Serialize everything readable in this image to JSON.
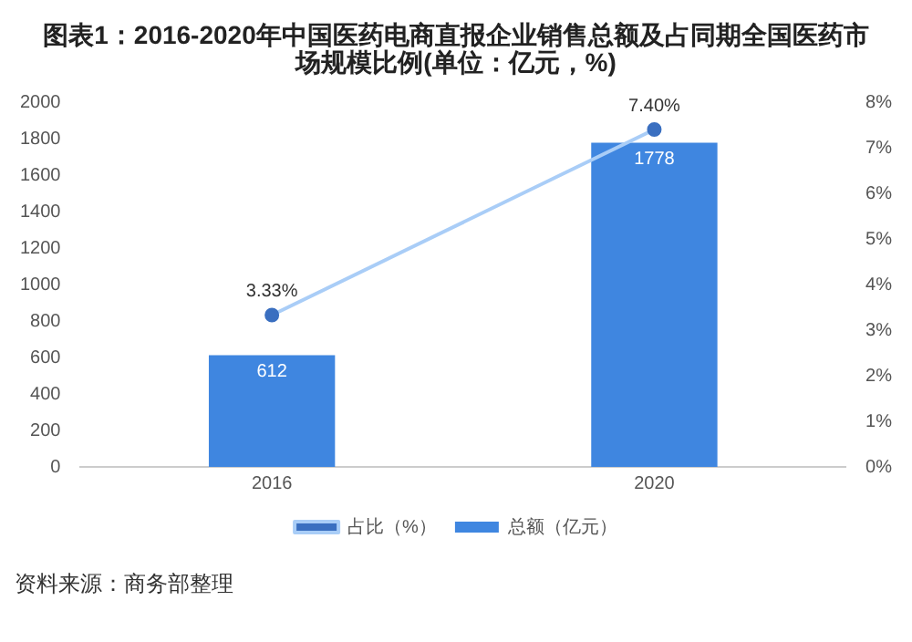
{
  "chart_data": {
    "type": "bar",
    "title": "图表1：2016-2020年中国医药电商直报企业销售总额及占同期全国医药市场规模比例(单位：亿元，%)",
    "categories": [
      "2016",
      "2020"
    ],
    "series": [
      {
        "name": "总额（亿元）",
        "color": "#3f86e0",
        "values": [
          612,
          1778
        ],
        "value_labels": [
          "612",
          "1778"
        ]
      },
      {
        "name": "占比（%）",
        "type": "line",
        "axis": "y2",
        "color": "#a9cdf7",
        "values": [
          3.33,
          7.4
        ],
        "value_labels": [
          "3.33%",
          "7.40%"
        ]
      }
    ],
    "ylim": [
      0,
      2000
    ],
    "yticks": [
      0,
      200,
      400,
      600,
      800,
      1000,
      1200,
      1400,
      1600,
      1800,
      2000
    ],
    "y2lim": [
      0,
      8
    ],
    "y2ticks": [
      {
        "value": 0,
        "label": "0%"
      },
      {
        "value": 1,
        "label": "1%"
      },
      {
        "value": 2,
        "label": "2%"
      },
      {
        "value": 3,
        "label": "3%"
      },
      {
        "value": 4,
        "label": "4%"
      },
      {
        "value": 5,
        "label": "5%"
      },
      {
        "value": 6,
        "label": "6%"
      },
      {
        "value": 7,
        "label": "7%"
      },
      {
        "value": 8,
        "label": "8%"
      }
    ],
    "legend": "bottom",
    "marker": "circle",
    "annotations": [
      "资料来源：商务部整理"
    ]
  }
}
